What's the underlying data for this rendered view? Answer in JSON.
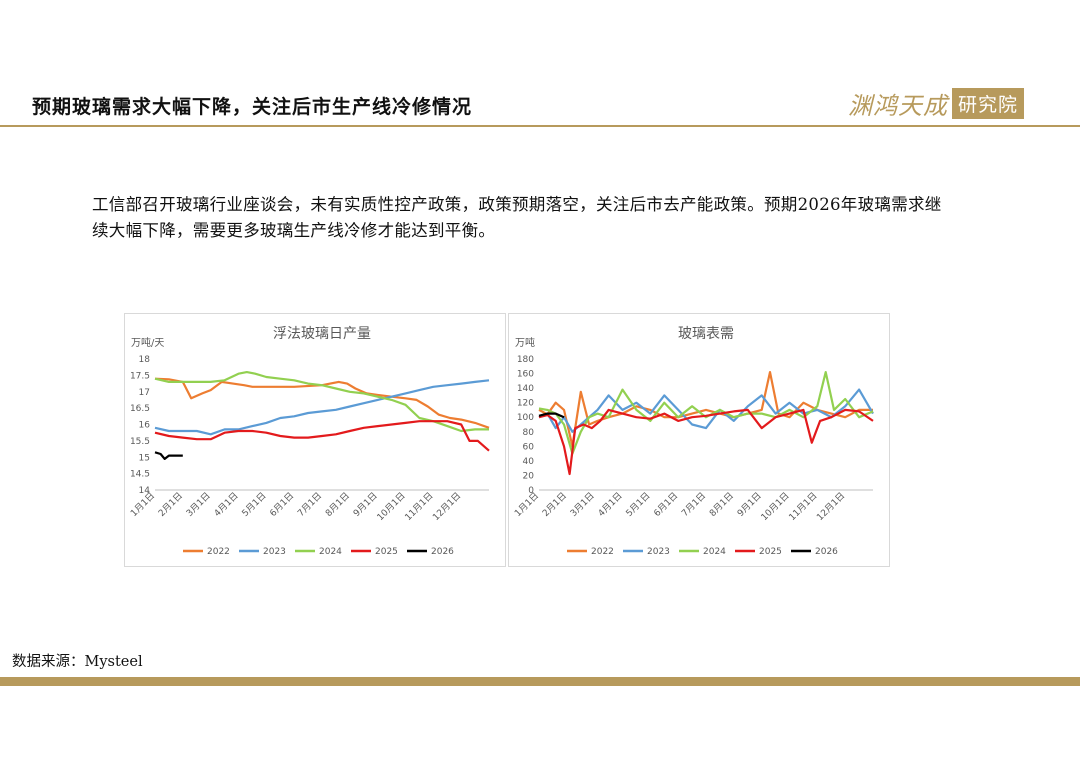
{
  "header": {
    "title": "预期玻璃需求大幅下降，关注后市生产线冷修情况",
    "logo_main": "渊鸿天成",
    "logo_box": "研究院"
  },
  "intro_text": "工信部召开玻璃行业座谈会，未有实质性控产政策，政策预期落空，关注后市去产能政策。预期2026年玻璃需求继续大幅下降，需要更多玻璃生产线冷修才能达到平衡。",
  "source_text": "数据来源：Mysteel",
  "colors": {
    "accent": "#b79a5c",
    "2022": "#ed7d31",
    "2023": "#5b9bd5",
    "2024": "#92d050",
    "2025": "#e31a1c",
    "2026": "#000000"
  },
  "chart_data": [
    {
      "type": "line",
      "title": "浮法玻璃日产量",
      "ylabel": "万吨/天",
      "ylim": [
        14,
        18
      ],
      "yticks": [
        "14",
        "14.5",
        "15",
        "15.5",
        "16",
        "16.5",
        "17",
        "17.5",
        "18"
      ],
      "xticks": [
        "1月1日",
        "2月1日",
        "3月1日",
        "4月1日",
        "5月1日",
        "6月1日",
        "7月1日",
        "8月1日",
        "9月1日",
        "10月1日",
        "11月1日",
        "12月1日"
      ],
      "legend": "bottom",
      "series": [
        {
          "name": "2022",
          "x": [
            0,
            0.5,
            1,
            1.3,
            1.7,
            2,
            2.4,
            2.8,
            3.2,
            3.5,
            4,
            5,
            6,
            6.6,
            6.9,
            7.2,
            7.6,
            8,
            8.5,
            9,
            9.4,
            9.8,
            10.2,
            10.6,
            11,
            11.5,
            12
          ],
          "values": [
            17.4,
            17.38,
            17.3,
            16.8,
            16.95,
            17.05,
            17.3,
            17.25,
            17.2,
            17.15,
            17.15,
            17.15,
            17.2,
            17.3,
            17.25,
            17.1,
            16.95,
            16.9,
            16.85,
            16.8,
            16.75,
            16.55,
            16.3,
            16.2,
            16.15,
            16.05,
            15.9
          ]
        },
        {
          "name": "2023",
          "x": [
            0,
            0.5,
            1,
            1.5,
            2,
            2.5,
            3,
            3.5,
            4,
            4.5,
            5,
            5.5,
            6,
            6.5,
            7,
            7.5,
            8,
            8.5,
            9,
            9.5,
            10,
            10.5,
            11,
            11.5,
            12
          ],
          "values": [
            15.9,
            15.8,
            15.8,
            15.8,
            15.7,
            15.85,
            15.85,
            15.95,
            16.05,
            16.2,
            16.25,
            16.35,
            16.4,
            16.45,
            16.55,
            16.65,
            16.75,
            16.85,
            16.95,
            17.05,
            17.15,
            17.2,
            17.25,
            17.3,
            17.35
          ]
        },
        {
          "name": "2024",
          "x": [
            0,
            0.5,
            1,
            1.5,
            2,
            2.5,
            3,
            3.3,
            3.6,
            4,
            4.5,
            5,
            5.5,
            6,
            6.5,
            7,
            7.5,
            8,
            8.5,
            9,
            9.5,
            10,
            10.5,
            11,
            11.5,
            12
          ],
          "values": [
            17.4,
            17.3,
            17.3,
            17.3,
            17.3,
            17.35,
            17.55,
            17.6,
            17.55,
            17.45,
            17.4,
            17.35,
            17.25,
            17.2,
            17.1,
            17.0,
            16.95,
            16.85,
            16.75,
            16.6,
            16.2,
            16.1,
            15.95,
            15.8,
            15.85,
            15.85
          ]
        },
        {
          "name": "2025",
          "x": [
            0,
            0.5,
            1,
            1.5,
            2,
            2.5,
            3,
            3.5,
            4,
            4.5,
            5,
            5.5,
            6,
            6.5,
            7,
            7.5,
            8,
            8.5,
            9,
            9.5,
            10,
            10.5,
            11,
            11.3,
            11.6,
            12
          ],
          "values": [
            15.75,
            15.65,
            15.6,
            15.55,
            15.55,
            15.75,
            15.8,
            15.8,
            15.75,
            15.65,
            15.6,
            15.6,
            15.65,
            15.7,
            15.8,
            15.9,
            15.95,
            16.0,
            16.05,
            16.1,
            16.1,
            16.1,
            16.0,
            15.5,
            15.5,
            15.2
          ]
        },
        {
          "name": "2026",
          "x": [
            0,
            0.2,
            0.35,
            0.5,
            0.8,
            1.0
          ],
          "values": [
            15.15,
            15.1,
            14.95,
            15.05,
            15.05,
            15.05
          ]
        }
      ]
    },
    {
      "type": "line",
      "title": "玻璃表需",
      "ylabel": "万吨",
      "ylim": [
        0,
        180
      ],
      "yticks": [
        "0",
        "20",
        "40",
        "60",
        "80",
        "100",
        "120",
        "140",
        "160",
        "180"
      ],
      "xticks": [
        "1月1日",
        "2月1日",
        "3月1日",
        "4月1日",
        "5月1日",
        "6月1日",
        "7月1日",
        "8月1日",
        "9月1日",
        "10月1日",
        "11月1日",
        "12月1日"
      ],
      "legend": "bottom",
      "series": [
        {
          "name": "2022",
          "x": [
            0,
            0.3,
            0.6,
            0.9,
            1.2,
            1.5,
            1.8,
            2.1,
            2.5,
            3,
            3.5,
            4,
            4.5,
            5,
            5.5,
            6,
            6.5,
            7,
            7.5,
            8,
            8.3,
            8.6,
            9,
            9.5,
            10,
            10.5,
            11,
            11.5,
            12
          ],
          "values": [
            110,
            104,
            120,
            110,
            60,
            135,
            90,
            95,
            100,
            105,
            115,
            110,
            100,
            100,
            105,
            110,
            105,
            100,
            105,
            110,
            162,
            105,
            100,
            120,
            110,
            105,
            100,
            110,
            110
          ]
        },
        {
          "name": "2023",
          "x": [
            0,
            0.3,
            0.6,
            0.9,
            1.2,
            1.5,
            1.8,
            2.1,
            2.5,
            3,
            3.5,
            4,
            4.5,
            5,
            5.5,
            6,
            6.5,
            7,
            7.5,
            8,
            8.5,
            9,
            9.5,
            10,
            10.5,
            11,
            11.5,
            12
          ],
          "values": [
            100,
            105,
            85,
            100,
            80,
            90,
            100,
            110,
            130,
            110,
            120,
            105,
            130,
            110,
            90,
            85,
            110,
            95,
            115,
            130,
            105,
            120,
            105,
            110,
            100,
            115,
            138,
            105
          ]
        },
        {
          "name": "2024",
          "x": [
            0,
            0.3,
            0.6,
            0.9,
            1.2,
            1.5,
            1.8,
            2.1,
            2.5,
            3,
            3.5,
            4,
            4.5,
            5,
            5.5,
            6,
            6.5,
            7,
            7.5,
            8,
            8.5,
            9,
            9.5,
            10,
            10.3,
            10.6,
            11,
            11.5,
            12
          ],
          "values": [
            112,
            110,
            105,
            90,
            50,
            80,
            100,
            105,
            100,
            138,
            110,
            95,
            120,
            100,
            115,
            100,
            110,
            100,
            105,
            105,
            100,
            110,
            100,
            115,
            162,
            110,
            125,
            100,
            108
          ]
        },
        {
          "name": "2025",
          "x": [
            0,
            0.3,
            0.6,
            0.9,
            1.1,
            1.3,
            1.6,
            1.9,
            2.2,
            2.5,
            3,
            3.5,
            4,
            4.5,
            5,
            5.5,
            6,
            6.5,
            7,
            7.5,
            8,
            8.5,
            9,
            9.5,
            9.8,
            10.1,
            10.5,
            11,
            11.5,
            12
          ],
          "values": [
            100,
            103,
            95,
            60,
            22,
            85,
            90,
            85,
            95,
            110,
            105,
            100,
            98,
            105,
            95,
            100,
            102,
            105,
            108,
            110,
            85,
            100,
            105,
            110,
            65,
            95,
            100,
            110,
            108,
            95
          ]
        },
        {
          "name": "2026",
          "x": [
            0,
            0.3,
            0.6,
            0.9
          ],
          "values": [
            102,
            105,
            105,
            100
          ]
        }
      ]
    }
  ]
}
